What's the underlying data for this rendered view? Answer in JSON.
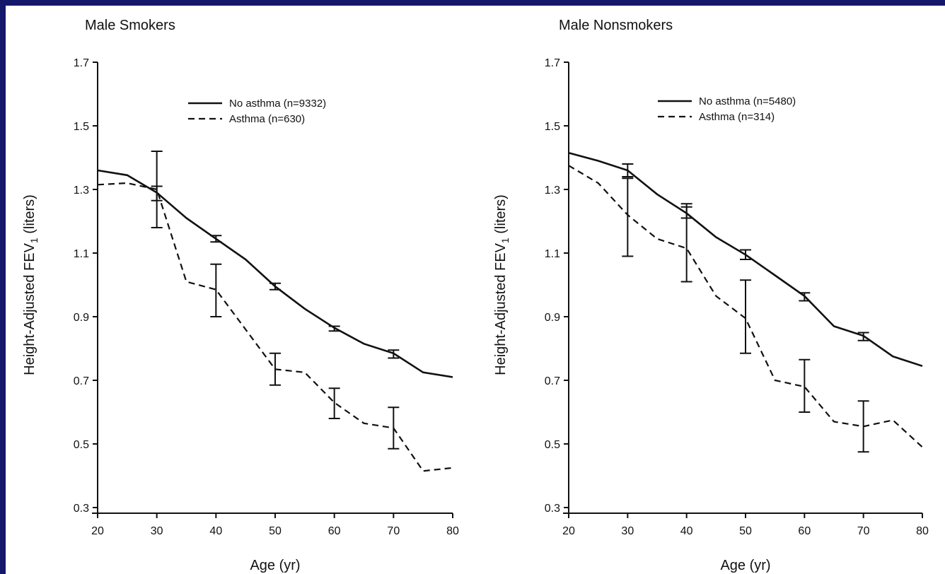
{
  "chart_data": [
    {
      "type": "line",
      "title": "Male Smokers",
      "xlabel": "Age (yr)",
      "ylabel": "Height-Adjusted FEV",
      "ylabel_subscript": "1",
      "ylabel_suffix": " (liters)",
      "xlim": [
        20,
        80
      ],
      "ylim": [
        0.3,
        1.7
      ],
      "xticks": [
        20,
        30,
        40,
        50,
        60,
        70,
        80
      ],
      "yticks": [
        0.3,
        0.5,
        0.7,
        0.9,
        1.1,
        1.3,
        1.5,
        1.7
      ],
      "grid": false,
      "legend_position": "top-center",
      "series": [
        {
          "name": "No asthma (n=9332)",
          "style": "solid",
          "x": [
            20,
            25,
            30,
            35,
            40,
            45,
            50,
            55,
            60,
            65,
            70,
            75,
            80
          ],
          "y": [
            1.36,
            1.345,
            1.29,
            1.21,
            1.145,
            1.08,
            0.995,
            0.925,
            0.865,
            0.815,
            0.785,
            0.725,
            0.71
          ],
          "error_bars": [
            {
              "x": 30,
              "low": 1.265,
              "high": 1.31
            },
            {
              "x": 40,
              "low": 1.135,
              "high": 1.155
            },
            {
              "x": 50,
              "low": 0.985,
              "high": 1.005
            },
            {
              "x": 60,
              "low": 0.855,
              "high": 0.87
            },
            {
              "x": 70,
              "low": 0.77,
              "high": 0.795
            }
          ]
        },
        {
          "name": "Asthma (n=630)",
          "style": "dashed",
          "x": [
            20,
            25,
            30,
            35,
            40,
            45,
            50,
            55,
            60,
            65,
            70,
            75,
            80
          ],
          "y": [
            1.315,
            1.32,
            1.3,
            1.01,
            0.985,
            0.86,
            0.735,
            0.725,
            0.63,
            0.565,
            0.55,
            0.415,
            0.425
          ],
          "error_bars": [
            {
              "x": 30,
              "low": 1.18,
              "high": 1.42
            },
            {
              "x": 40,
              "low": 0.9,
              "high": 1.065
            },
            {
              "x": 50,
              "low": 0.685,
              "high": 0.785
            },
            {
              "x": 60,
              "low": 0.58,
              "high": 0.675
            },
            {
              "x": 70,
              "low": 0.485,
              "high": 0.615
            }
          ]
        }
      ]
    },
    {
      "type": "line",
      "title": "Male Nonsmokers",
      "xlabel": "Age (yr)",
      "ylabel": "Height-Adjusted FEV",
      "ylabel_subscript": "1",
      "ylabel_suffix": " (liters)",
      "xlim": [
        20,
        80
      ],
      "ylim": [
        0.3,
        1.7
      ],
      "xticks": [
        20,
        30,
        40,
        50,
        60,
        70,
        80
      ],
      "yticks": [
        0.3,
        0.5,
        0.7,
        0.9,
        1.1,
        1.3,
        1.5,
        1.7
      ],
      "grid": false,
      "legend_position": "top-center",
      "series": [
        {
          "name": "No asthma (n=5480)",
          "style": "solid",
          "x": [
            20,
            25,
            30,
            35,
            40,
            45,
            50,
            55,
            60,
            65,
            70,
            75,
            80
          ],
          "y": [
            1.415,
            1.39,
            1.36,
            1.285,
            1.225,
            1.15,
            1.095,
            1.03,
            0.965,
            0.87,
            0.84,
            0.775,
            0.745
          ],
          "error_bars": [
            {
              "x": 30,
              "low": 1.34,
              "high": 1.38
            },
            {
              "x": 40,
              "low": 1.21,
              "high": 1.245
            },
            {
              "x": 50,
              "low": 1.08,
              "high": 1.11
            },
            {
              "x": 60,
              "low": 0.95,
              "high": 0.975
            },
            {
              "x": 70,
              "low": 0.825,
              "high": 0.85
            }
          ]
        },
        {
          "name": "Asthma (n=314)",
          "style": "dashed",
          "x": [
            20,
            25,
            30,
            35,
            40,
            45,
            50,
            55,
            60,
            65,
            70,
            75,
            80
          ],
          "y": [
            1.375,
            1.32,
            1.22,
            1.145,
            1.115,
            0.965,
            0.895,
            0.7,
            0.68,
            0.57,
            0.555,
            0.575,
            0.49
          ],
          "error_bars": [
            {
              "x": 30,
              "low": 1.09,
              "high": 1.335
            },
            {
              "x": 40,
              "low": 1.01,
              "high": 1.255
            },
            {
              "x": 50,
              "low": 0.785,
              "high": 1.015
            },
            {
              "x": 60,
              "low": 0.6,
              "high": 0.765
            },
            {
              "x": 70,
              "low": 0.475,
              "high": 0.635
            }
          ]
        }
      ]
    }
  ]
}
